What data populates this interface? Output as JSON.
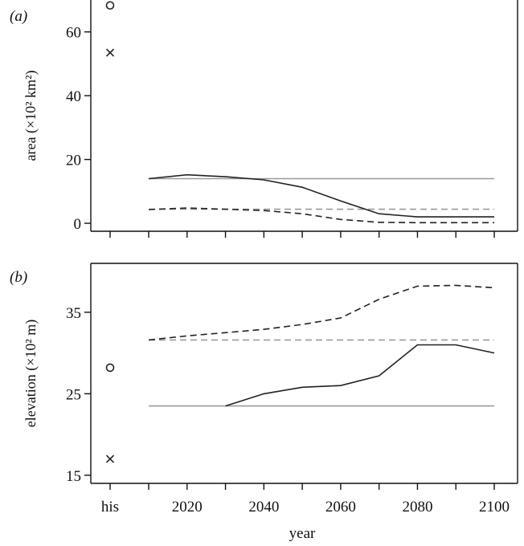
{
  "chart_data": [
    {
      "type": "line",
      "panel_label": "(a)",
      "ylabel": "area (×10² km²)",
      "xlabel": "",
      "x": [
        2010,
        2020,
        2030,
        2040,
        2050,
        2060,
        2070,
        2080,
        2090,
        2100
      ],
      "xticks": [
        "his",
        "2020",
        "2040",
        "2060",
        "2080",
        "2100"
      ],
      "yticks": [
        0,
        20,
        40,
        60
      ],
      "ylim": [
        -2.5,
        70
      ],
      "grid": false,
      "historical_markers": [
        {
          "marker": "circle",
          "x": "his",
          "y": 68.3
        },
        {
          "marker": "cross",
          "x": "his",
          "y": 53.5
        }
      ],
      "series": [
        {
          "style": "solid",
          "color": "#222222",
          "values": [
            14.0,
            15.2,
            14.6,
            13.6,
            11.3,
            7.0,
            3.0,
            2.0,
            2.0,
            2.0
          ]
        },
        {
          "style": "dashed",
          "color": "#222222",
          "values": [
            4.3,
            4.8,
            4.4,
            4.0,
            3.0,
            1.2,
            0.3,
            0.2,
            0.2,
            0.2
          ]
        },
        {
          "style": "solid",
          "color": "#9a9a9a",
          "values": [
            14.0,
            14.0,
            14.0,
            14.0,
            14.0,
            14.0,
            14.0,
            14.0,
            14.0,
            14.0
          ]
        },
        {
          "style": "dashed",
          "color": "#9a9a9a",
          "values": [
            4.4,
            4.4,
            4.4,
            4.4,
            4.4,
            4.4,
            4.4,
            4.4,
            4.4,
            4.4
          ]
        }
      ]
    },
    {
      "type": "line",
      "panel_label": "(b)",
      "ylabel": "elevation (×10² m)",
      "xlabel": "year",
      "x": [
        2010,
        2020,
        2030,
        2040,
        2050,
        2060,
        2070,
        2080,
        2090,
        2100
      ],
      "xticks": [
        "his",
        "2020",
        "2040",
        "2060",
        "2080",
        "2100"
      ],
      "yticks": [
        15,
        25,
        35
      ],
      "ylim": [
        14,
        41
      ],
      "grid": false,
      "historical_markers": [
        {
          "marker": "circle",
          "x": "his",
          "y": 28.2
        },
        {
          "marker": "cross",
          "x": "his",
          "y": 17.0
        }
      ],
      "series": [
        {
          "style": "solid",
          "color": "#222222",
          "values": [
            null,
            null,
            23.5,
            25.0,
            25.8,
            26.0,
            27.2,
            31.0,
            31.0,
            30.0
          ]
        },
        {
          "style": "dashed",
          "color": "#222222",
          "values": [
            31.6,
            32.1,
            32.5,
            32.9,
            33.5,
            34.3,
            36.6,
            38.2,
            38.3,
            38.0
          ]
        },
        {
          "style": "solid",
          "color": "#9a9a9a",
          "values": [
            23.5,
            23.5,
            23.5,
            23.5,
            23.5,
            23.5,
            23.5,
            23.5,
            23.5,
            23.5
          ]
        },
        {
          "style": "dashed",
          "color": "#9a9a9a",
          "values": [
            31.6,
            31.6,
            31.6,
            31.6,
            31.6,
            31.6,
            31.6,
            31.6,
            31.6,
            31.6
          ]
        }
      ]
    }
  ]
}
